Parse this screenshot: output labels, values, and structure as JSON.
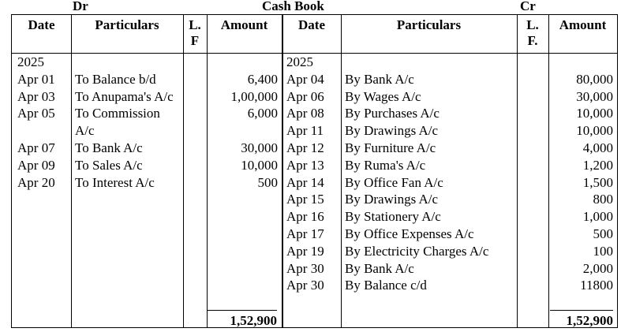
{
  "title": {
    "dr": "Dr",
    "center": "Cash Book",
    "cr": "Cr"
  },
  "headers": {
    "date": "Date",
    "particulars": "Particulars",
    "lf_left": "L. F",
    "amount": "Amount",
    "lf_right": "L. F."
  },
  "year": "2025",
  "debit": [
    {
      "date": "Apr 01",
      "particulars": "To Balance b/d",
      "amount": "6,400"
    },
    {
      "date": "Apr 03",
      "particulars": "To Anupama's A/c",
      "amount": "1,00,000"
    },
    {
      "date": "Apr 05",
      "particulars": "To Commission A/c",
      "amount": "6,000"
    },
    {
      "date": "Apr 07",
      "particulars": "To Bank A/c",
      "amount": "30,000"
    },
    {
      "date": "Apr 09",
      "particulars": "To Sales A/c",
      "amount": "10,000"
    },
    {
      "date": "Apr 20",
      "particulars": "To Interest A/c",
      "amount": "500"
    }
  ],
  "credit": [
    {
      "date": "Apr 04",
      "particulars": "By Bank A/c",
      "amount": "80,000"
    },
    {
      "date": "Apr 06",
      "particulars": "By Wages A/c",
      "amount": "30,000"
    },
    {
      "date": "Apr 08",
      "particulars": "By Purchases A/c",
      "amount": "10,000"
    },
    {
      "date": "Apr 11",
      "particulars": "By Drawings A/c",
      "amount": "10,000"
    },
    {
      "date": "Apr 12",
      "particulars": "By Furniture A/c",
      "amount": "4,000"
    },
    {
      "date": "Apr 13",
      "particulars": "By Ruma's A/c",
      "amount": "1,200"
    },
    {
      "date": "Apr 14",
      "particulars": "By Office Fan A/c",
      "amount": "1,500"
    },
    {
      "date": "Apr 15",
      "particulars": "By Drawings A/c",
      "amount": "800"
    },
    {
      "date": "Apr 16",
      "particulars": "By Stationery A/c",
      "amount": "1,000"
    },
    {
      "date": "Apr 17",
      "particulars": "By Office Expenses A/c",
      "amount": "500"
    },
    {
      "date": "Apr 19",
      "particulars": "By Electricity Charges A/c",
      "amount": "100"
    },
    {
      "date": "Apr 30",
      "particulars": "By Bank A/c",
      "amount": "2,000"
    },
    {
      "date": "Apr 30",
      "particulars": "By Balance c/d",
      "amount": "11800"
    }
  ],
  "totals": {
    "debit": "1,52,900",
    "credit": "1,52,900"
  }
}
